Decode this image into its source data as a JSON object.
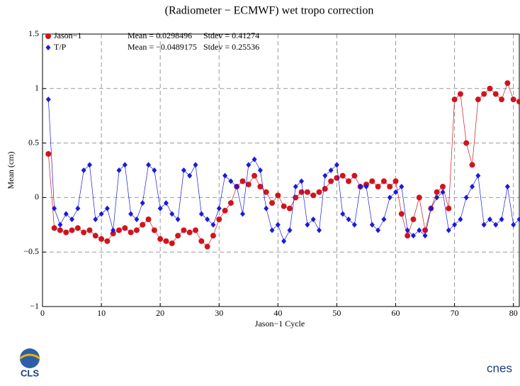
{
  "chart_data": {
    "type": "scatter-line",
    "title": "(Radiometer − ECMWF) wet tropo correction",
    "x_label": "Jason−1 Cycle",
    "y_label": "Mean (cm)",
    "xlim": [
      0,
      81
    ],
    "ylim": [
      -1,
      1.5
    ],
    "xticks": [
      0,
      10,
      20,
      30,
      40,
      50,
      60,
      70,
      80
    ],
    "yticks": [
      {
        "value": -1,
        "label": "−1"
      },
      {
        "value": -0.5,
        "label": "−0.5"
      },
      0,
      0.5,
      1,
      1.5
    ],
    "grid": true,
    "legend": "top-left",
    "x": [
      1,
      2,
      3,
      4,
      5,
      6,
      7,
      8,
      9,
      10,
      11,
      12,
      13,
      14,
      15,
      16,
      17,
      18,
      19,
      20,
      21,
      22,
      23,
      24,
      25,
      26,
      27,
      28,
      29,
      30,
      31,
      32,
      33,
      34,
      35,
      36,
      37,
      38,
      39,
      40,
      41,
      42,
      43,
      44,
      45,
      46,
      47,
      48,
      49,
      50,
      51,
      52,
      53,
      54,
      55,
      56,
      57,
      58,
      59,
      60,
      61,
      62,
      63,
      64,
      65,
      66,
      67,
      68,
      69,
      70,
      71,
      72,
      73,
      74,
      75,
      76,
      77,
      78,
      79,
      80,
      81
    ],
    "series": [
      {
        "name": "Jason−1",
        "color": "#d0141e",
        "marker": "circle",
        "mean_text": "Mean = 0.0298496",
        "stdev_text": "Stdev = 0.41274",
        "values": [
          0.4,
          -0.28,
          -0.3,
          -0.32,
          -0.3,
          -0.28,
          -0.32,
          -0.3,
          -0.35,
          -0.38,
          -0.4,
          -0.33,
          -0.3,
          -0.28,
          -0.32,
          -0.3,
          -0.25,
          -0.2,
          -0.3,
          -0.38,
          -0.4,
          -0.42,
          -0.35,
          -0.3,
          -0.32,
          -0.3,
          -0.4,
          -0.45,
          -0.35,
          -0.2,
          -0.12,
          -0.05,
          0.1,
          0.15,
          0.12,
          0.2,
          0.1,
          0.05,
          -0.05,
          0.02,
          -0.08,
          -0.1,
          0,
          0.05,
          0.05,
          0.02,
          0.05,
          0.08,
          0.15,
          0.18,
          0.2,
          0.15,
          0.2,
          0.1,
          0.12,
          0.15,
          0.1,
          0.15,
          0.1,
          0.15,
          -0.15,
          -0.35,
          -0.2,
          0,
          -0.3,
          -0.1,
          0.05,
          0.1,
          -0.1,
          0.9,
          0.95,
          0.5,
          0.3,
          0.9,
          0.95,
          1.0,
          0.95,
          0.9,
          1.05,
          0.9,
          0.88
        ]
      },
      {
        "name": "T/P",
        "color": "#1a1adc",
        "marker": "diamond",
        "mean_text": "Mean = −0.0489175",
        "stdev_text": "Stdev = 0.25536",
        "values": [
          0.9,
          -0.1,
          -0.25,
          -0.15,
          -0.2,
          -0.1,
          0.25,
          0.3,
          -0.2,
          -0.15,
          -0.1,
          -0.3,
          0.25,
          0.3,
          -0.15,
          -0.2,
          -0.05,
          0.3,
          0.25,
          -0.1,
          -0.05,
          -0.15,
          -0.2,
          0.25,
          0.2,
          0.3,
          -0.15,
          -0.2,
          -0.25,
          -0.1,
          0.2,
          0.15,
          0.1,
          -0.15,
          0.3,
          0.35,
          0.25,
          -0.1,
          -0.3,
          -0.25,
          -0.4,
          -0.3,
          0.1,
          0.15,
          -0.25,
          -0.2,
          -0.3,
          0.2,
          0.25,
          0.3,
          -0.15,
          -0.2,
          -0.25,
          0.1,
          0.1,
          -0.25,
          -0.3,
          -0.2,
          0,
          0.05,
          0.1,
          -0.3,
          -0.35,
          -0.3,
          -0.35,
          -0.1,
          0,
          0.05,
          -0.3,
          -0.25,
          -0.2,
          0,
          0.1,
          0.2,
          -0.25,
          -0.2,
          -0.25,
          -0.2,
          0.1,
          -0.25,
          -0.2
        ]
      }
    ],
    "logos": {
      "left": "CLS",
      "right": "cnes"
    }
  }
}
